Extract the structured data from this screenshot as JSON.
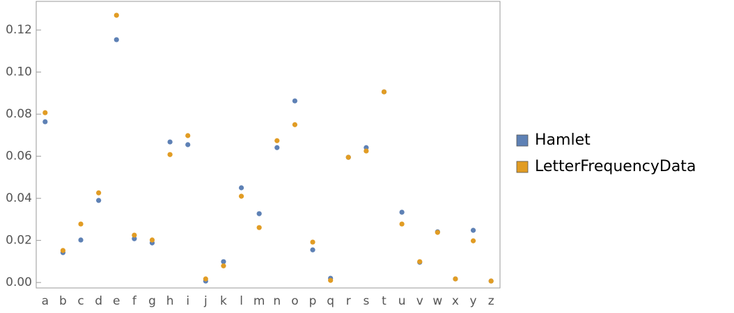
{
  "chart_data": {
    "type": "scatter",
    "categories": [
      "a",
      "b",
      "c",
      "d",
      "e",
      "f",
      "g",
      "h",
      "i",
      "j",
      "k",
      "l",
      "m",
      "n",
      "o",
      "p",
      "q",
      "r",
      "s",
      "t",
      "u",
      "v",
      "w",
      "x",
      "y",
      "z"
    ],
    "series": [
      {
        "name": "Hamlet",
        "color": "#5e81b5",
        "values": [
          0.0764,
          0.0142,
          0.0202,
          0.039,
          0.1154,
          0.0208,
          0.0188,
          0.0668,
          0.0655,
          0.0007,
          0.0099,
          0.045,
          0.0327,
          0.0641,
          0.0863,
          0.0155,
          0.002,
          0.0595,
          0.0641,
          0.0906,
          0.0334,
          0.0096,
          0.0241,
          0.0017,
          0.0248,
          0.0007
        ]
      },
      {
        "name": "LetterFrequencyData",
        "color": "#e19c24",
        "values": [
          0.0807,
          0.0152,
          0.0278,
          0.0426,
          0.127,
          0.0225,
          0.0202,
          0.0608,
          0.0698,
          0.0017,
          0.0079,
          0.041,
          0.0261,
          0.0674,
          0.075,
          0.0192,
          0.001,
          0.0595,
          0.0625,
          0.0906,
          0.0278,
          0.0099,
          0.0238,
          0.0017,
          0.0198,
          0.0007
        ]
      }
    ],
    "ylim": [
      -0.0026,
      0.1336
    ],
    "yticks": [
      {
        "value": 0,
        "label": "0.00"
      },
      {
        "value": 0.02,
        "label": "0.02"
      },
      {
        "value": 0.04,
        "label": "0.04"
      },
      {
        "value": 0.06,
        "label": "0.06"
      },
      {
        "value": 0.08,
        "label": "0.08"
      },
      {
        "value": 0.1,
        "label": "0.10"
      },
      {
        "value": 0.12,
        "label": "0.12"
      }
    ],
    "legend": "right"
  }
}
